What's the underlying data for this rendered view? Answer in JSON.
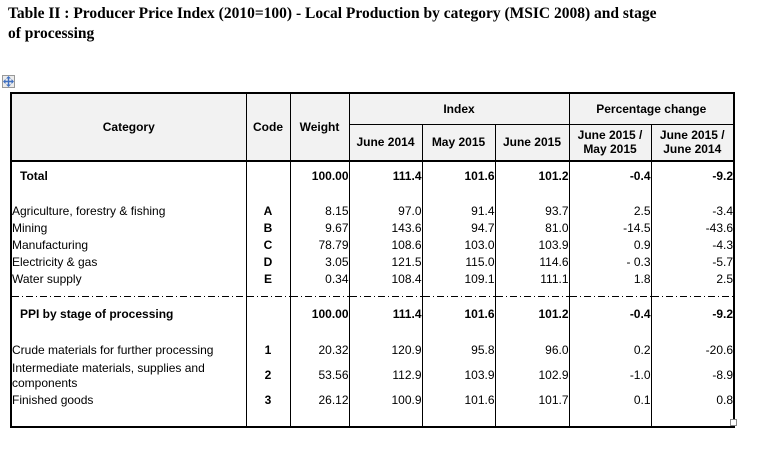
{
  "title": "Table II : Producer Price Index (2010=100) - Local Production by category (MSIC 2008) and stage of processing",
  "table": {
    "col_category": "Category",
    "col_code": "Code",
    "col_weight": "Weight",
    "group_index": "Index",
    "group_pct": "Percentage change",
    "subheaders": [
      "June 2014",
      "May 2015",
      "June 2015",
      "June 2015 / May 2015",
      "June 2015 / June 2014"
    ],
    "sections": [
      {
        "total": {
          "category": "Total",
          "code": "",
          "weight": "100.00",
          "values": [
            "111.4",
            "101.6",
            "101.2",
            "-0.4",
            "-9.2"
          ]
        },
        "rows": [
          {
            "category": "Agriculture, forestry & fishing",
            "code": "A",
            "weight": "8.15",
            "values": [
              "97.0",
              "91.4",
              "93.7",
              "2.5",
              "-3.4"
            ]
          },
          {
            "category": "Mining",
            "code": "B",
            "weight": "9.67",
            "values": [
              "143.6",
              "94.7",
              "81.0",
              "-14.5",
              "-43.6"
            ]
          },
          {
            "category": "Manufacturing",
            "code": "C",
            "weight": "78.79",
            "values": [
              "108.6",
              "103.0",
              "103.9",
              "0.9",
              "-4.3"
            ]
          },
          {
            "category": "Electricity & gas",
            "code": "D",
            "weight": "3.05",
            "values": [
              "121.5",
              "115.0",
              "114.6",
              "- 0.3",
              "-5.7"
            ]
          },
          {
            "category": "Water supply",
            "code": "E",
            "weight": "0.34",
            "values": [
              "108.4",
              "109.1",
              "111.1",
              "1.8",
              "2.5"
            ]
          }
        ]
      },
      {
        "total": {
          "category": "PPI by stage of processing",
          "code": "",
          "weight": "100.00",
          "values": [
            "111.4",
            "101.6",
            "101.2",
            "-0.4",
            "-9.2"
          ]
        },
        "rows": [
          {
            "category": "Crude materials for further processing",
            "code": "1",
            "weight": "20.32",
            "values": [
              "120.9",
              "95.8",
              "96.0",
              "0.2",
              "-20.6"
            ]
          },
          {
            "category": "Intermediate materials, supplies and components",
            "code": "2",
            "weight": "53.56",
            "values": [
              "112.9",
              "103.9",
              "102.9",
              "-1.0",
              "-8.9"
            ]
          },
          {
            "category": "Finished goods",
            "code": "3",
            "weight": "26.12",
            "values": [
              "100.9",
              "101.6",
              "101.7",
              "0.1",
              "0.8"
            ]
          }
        ]
      }
    ]
  },
  "icons": {
    "move_handle": "move-cross-icon",
    "resize_handle": "resize-square-icon"
  },
  "colors": {
    "header_bg": "#f2f2f2",
    "border": "#000000",
    "handle_blue": "#3f6fc0"
  }
}
